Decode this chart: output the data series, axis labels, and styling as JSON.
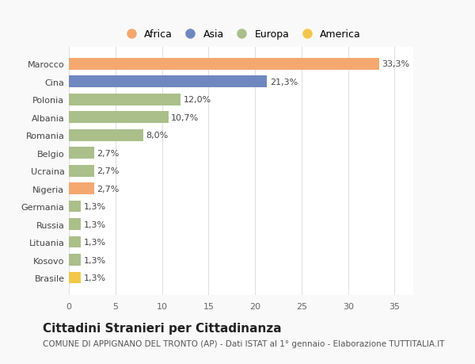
{
  "categories": [
    "Brasile",
    "Kosovo",
    "Lituania",
    "Russia",
    "Germania",
    "Nigeria",
    "Ucraina",
    "Belgio",
    "Romania",
    "Albania",
    "Polonia",
    "Cina",
    "Marocco"
  ],
  "values": [
    1.3,
    1.3,
    1.3,
    1.3,
    1.3,
    2.7,
    2.7,
    2.7,
    8.0,
    10.7,
    12.0,
    21.3,
    33.3
  ],
  "labels": [
    "1,3%",
    "1,3%",
    "1,3%",
    "1,3%",
    "1,3%",
    "2,7%",
    "2,7%",
    "2,7%",
    "8,0%",
    "10,7%",
    "12,0%",
    "21,3%",
    "33,3%"
  ],
  "continents": [
    "America",
    "Europa",
    "Europa",
    "Europa",
    "Europa",
    "Africa",
    "Europa",
    "Europa",
    "Europa",
    "Europa",
    "Europa",
    "Asia",
    "Africa"
  ],
  "continent_colors": {
    "Africa": "#F4A870",
    "Asia": "#7088C0",
    "Europa": "#AABF8A",
    "America": "#F2C84A"
  },
  "legend_order": [
    "Africa",
    "Asia",
    "Europa",
    "America"
  ],
  "title": "Cittadini Stranieri per Cittadinanza",
  "subtitle": "COMUNE DI APPIGNANO DEL TRONTO (AP) - Dati ISTAT al 1° gennaio - Elaborazione TUTTITALIA.IT",
  "xlim": [
    0,
    37
  ],
  "xticks": [
    0,
    5,
    10,
    15,
    20,
    25,
    30,
    35
  ],
  "background_color": "#f9f9f9",
  "plot_bg_color": "#ffffff",
  "grid_color": "#e0e0e0",
  "title_fontsize": 11,
  "subtitle_fontsize": 7.5,
  "label_fontsize": 8,
  "tick_fontsize": 8,
  "legend_fontsize": 9,
  "bar_height": 0.65
}
